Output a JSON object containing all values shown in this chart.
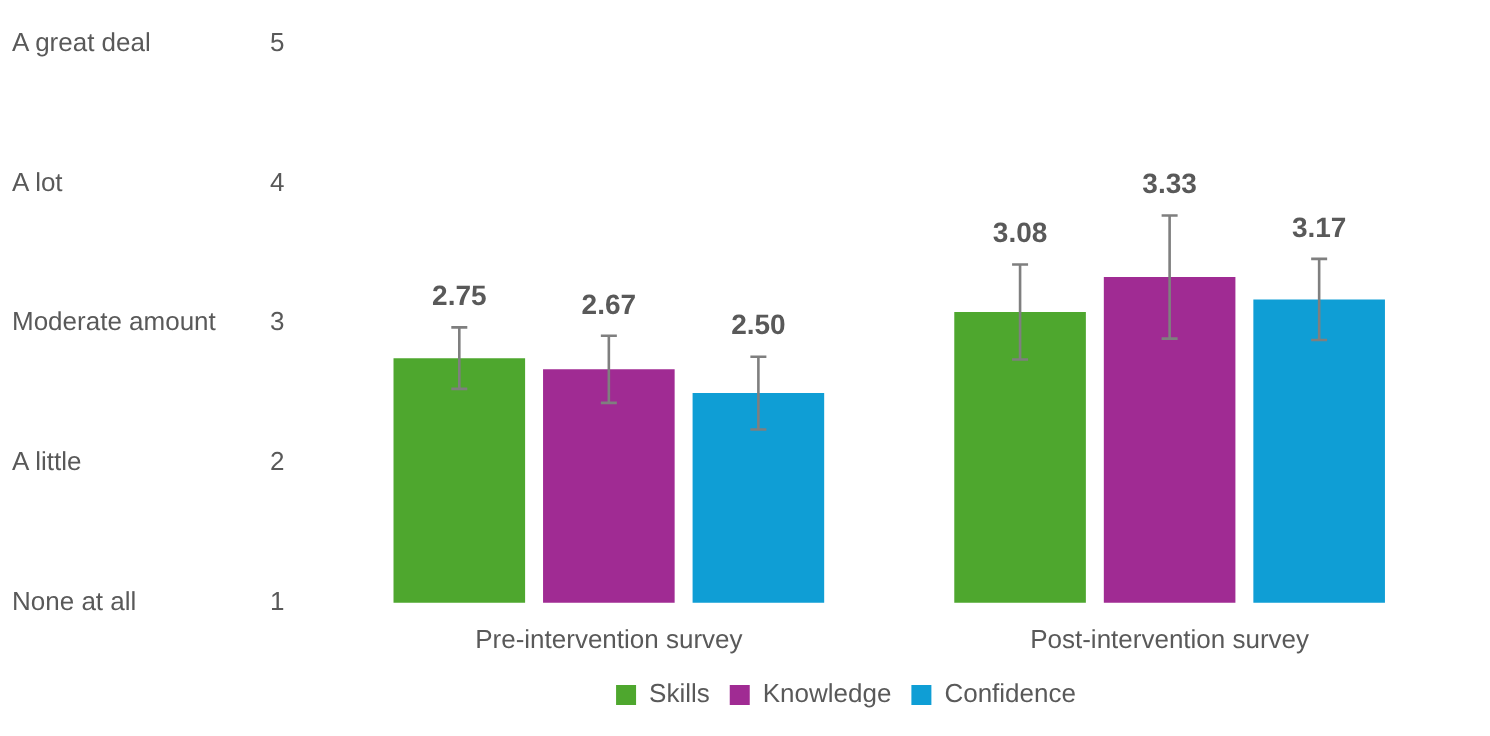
{
  "chart_data": {
    "type": "bar",
    "categories": [
      "Pre-intervention survey",
      "Post-intervention survey"
    ],
    "series": [
      {
        "name": "Skills",
        "color": "#4ea72e",
        "values": [
          2.75,
          3.08
        ],
        "errors": [
          0.22,
          0.34
        ],
        "value_labels": [
          "2.75",
          "3.08"
        ]
      },
      {
        "name": "Knowledge",
        "color": "#a02b93",
        "values": [
          2.67,
          3.33
        ],
        "errors": [
          0.24,
          0.44
        ],
        "value_labels": [
          "2.67",
          "3.33"
        ]
      },
      {
        "name": "Confidence",
        "color": "#0f9ed5",
        "values": [
          2.5,
          3.17
        ],
        "errors": [
          0.26,
          0.29
        ],
        "value_labels": [
          "2.50",
          "3.17"
        ]
      }
    ],
    "ylim": [
      1,
      5
    ],
    "yticks": [
      1,
      2,
      3,
      4,
      5
    ],
    "annotations": [
      "None at all",
      "A little",
      "Moderate amount",
      "A lot",
      "A great deal"
    ],
    "legend": "bottom"
  }
}
